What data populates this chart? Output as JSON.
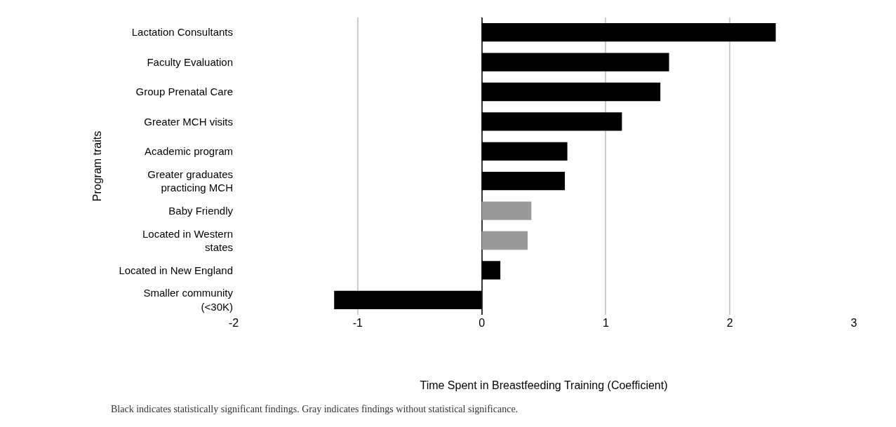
{
  "chart_data": {
    "type": "bar",
    "orientation": "horizontal",
    "categories": [
      "Lactation Consultants",
      "Faculty Evaluation",
      "Group Prenatal Care",
      "Greater MCH visits",
      "Academic program",
      "Greater graduates\npracticing MCH",
      "Baby Friendly",
      "Located in Western\nstates",
      "Located in New England",
      "Smaller community\n(<30K)"
    ],
    "values": [
      2.37,
      1.51,
      1.44,
      1.13,
      0.69,
      0.67,
      0.4,
      0.37,
      0.15,
      -1.19
    ],
    "colors": [
      "#000000",
      "#000000",
      "#000000",
      "#000000",
      "#000000",
      "#000000",
      "#999999",
      "#999999",
      "#000000",
      "#000000"
    ],
    "xlim": [
      -2,
      3
    ],
    "xticks": [
      -2,
      -1,
      0,
      1,
      2,
      3
    ],
    "xlabel": "Time Spent in Breastfeeding Training (Coefficient)",
    "ylabel": "Program traits",
    "grid": "x",
    "annotations": [
      "Black indicates statistically significant findings. Gray indicates findings without statistical significance."
    ]
  }
}
